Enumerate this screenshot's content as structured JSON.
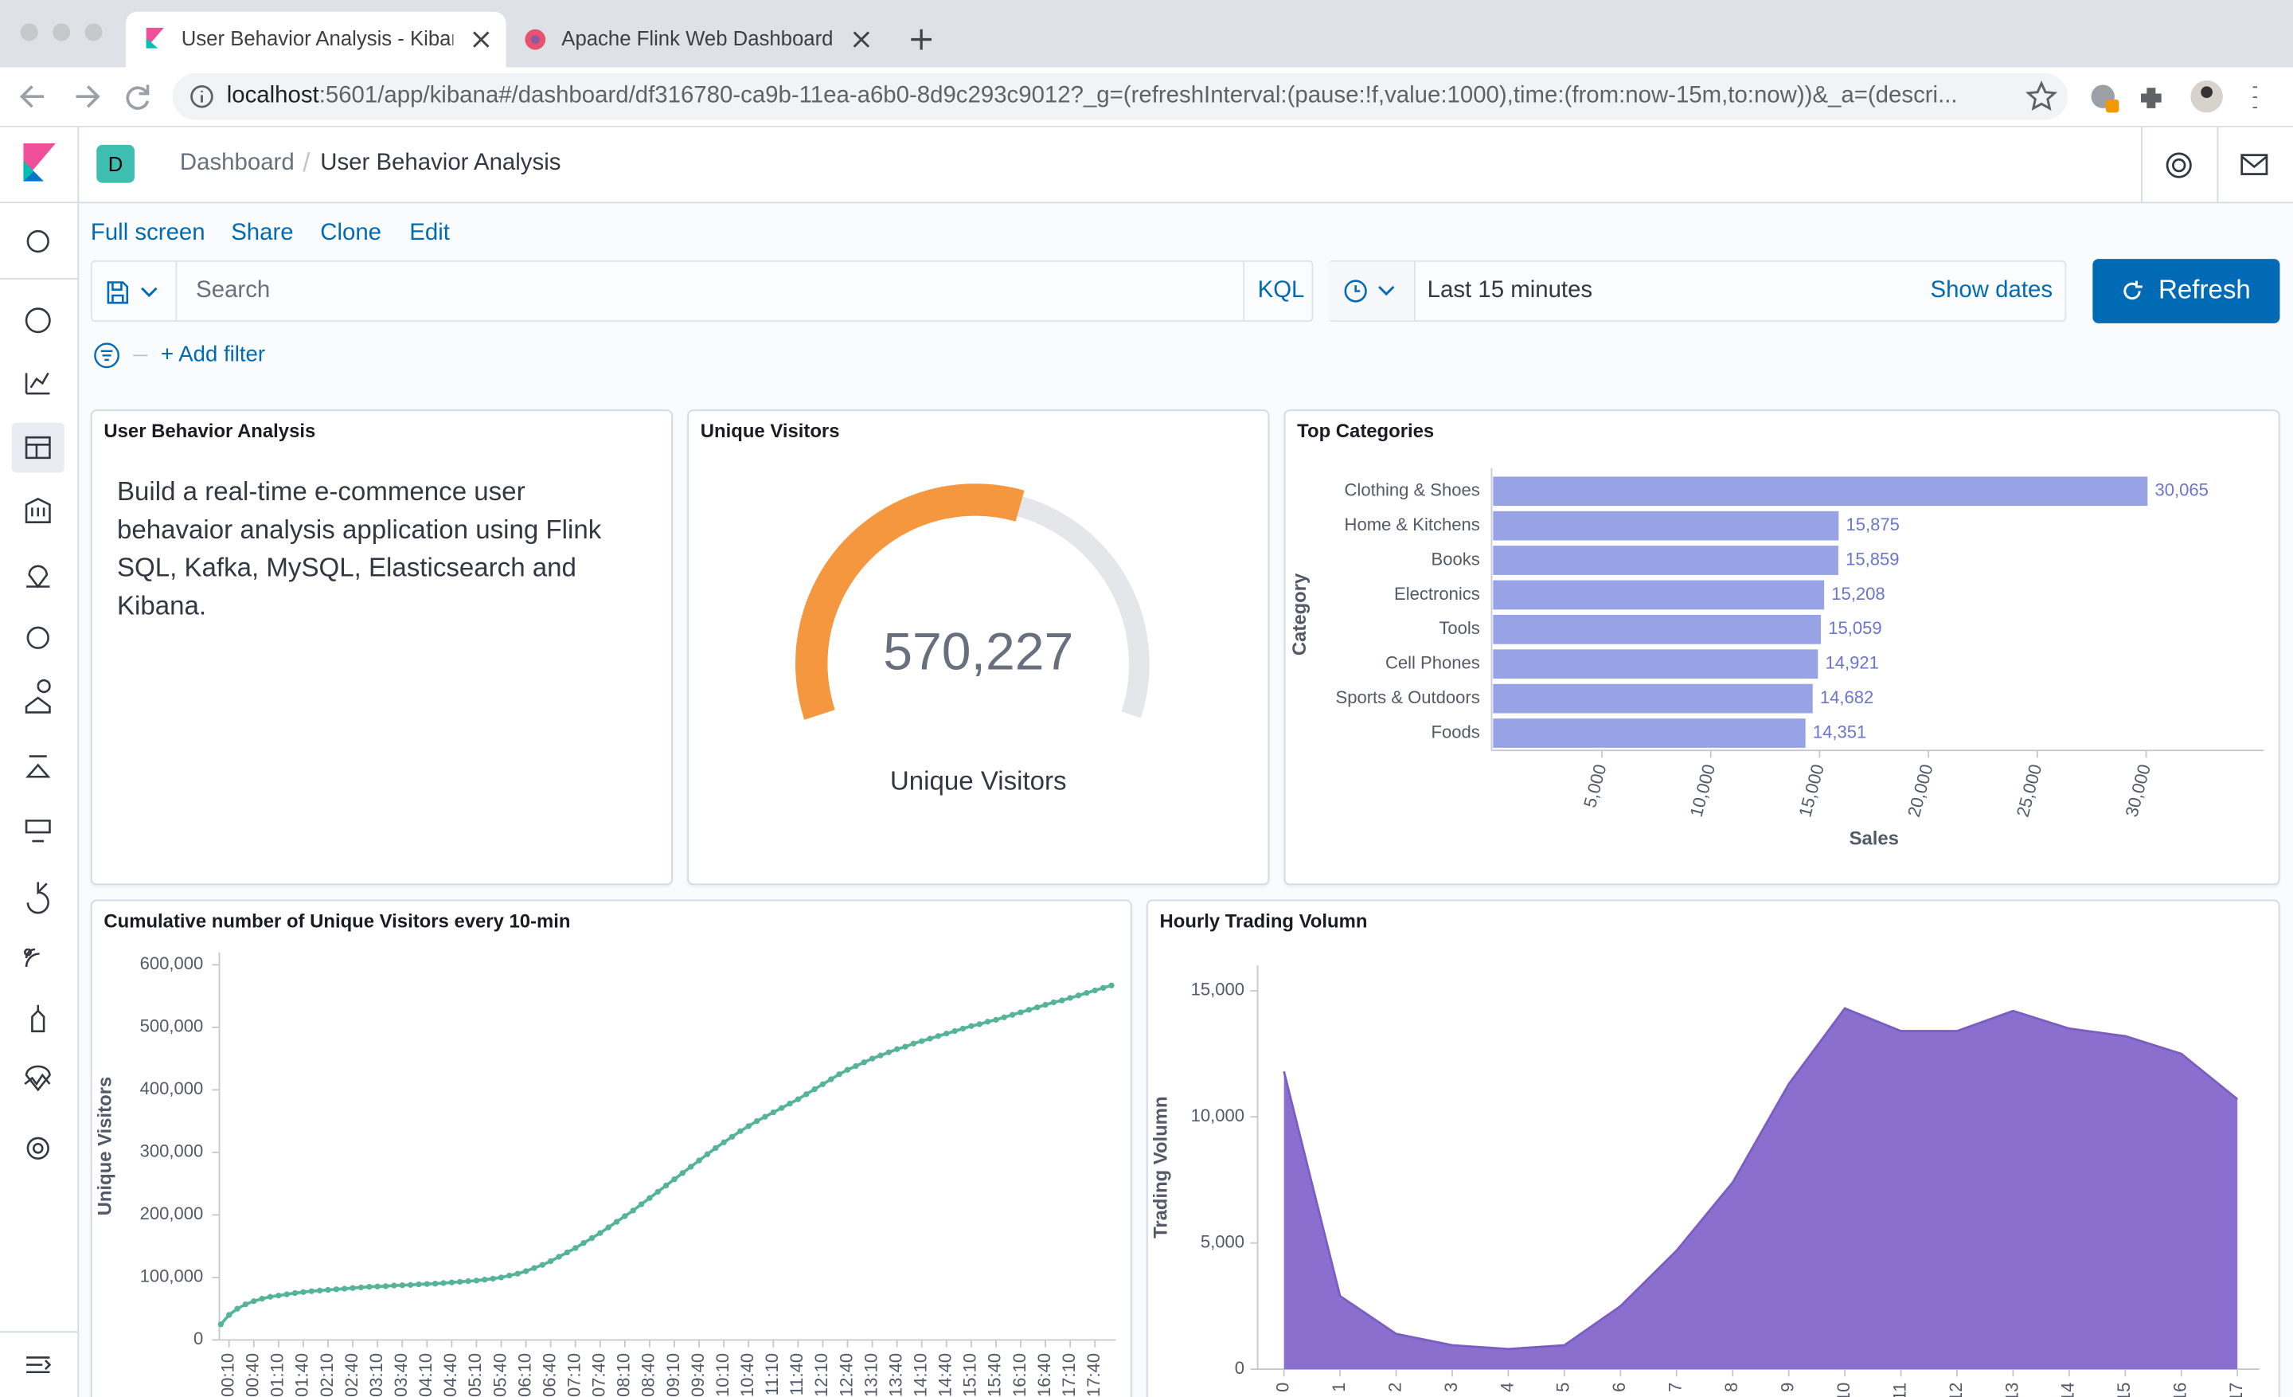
{
  "browser": {
    "tabs": [
      "User Behavior Analysis - Kiban",
      "Apache Flink Web Dashboard"
    ],
    "url_host": "localhost",
    "url_rest": ":5601/app/kibana#/dashboard/df316780-ca9b-11ea-a6b0-8d9c293c9012?_g=(refreshInterval:(pause:!f,value:1000),time:(from:now-15m,to:now))&_a=(descri..."
  },
  "kibana": {
    "space": "D",
    "breadcrumbs": [
      "Dashboard",
      "User Behavior Analysis"
    ],
    "menu": [
      "Full screen",
      "Share",
      "Clone",
      "Edit"
    ],
    "search_placeholder": "Search",
    "query_language": "KQL",
    "time_range": "Last 15 minutes",
    "show_dates": "Show dates",
    "refresh": "Refresh",
    "add_filter": "+ Add filter"
  },
  "panels": [
    {
      "title": "User Behavior Analysis",
      "body": "Build a real-time e-commence user behavaior analysis application using Flink SQL, Kafka, MySQL, Elasticsearch and Kibana."
    },
    {
      "title": "Unique Visitors",
      "value": 570227,
      "value_label": "570,227",
      "label": "Unique Visitors"
    },
    {
      "title": "Top Categories",
      "chart": {
        "type": "barh",
        "color": "#98a3e6",
        "label_color": "#6b75c9",
        "categories": [
          "Clothing & Shoes",
          "Home & Kitchens",
          "Books",
          "Electronics",
          "Tools",
          "Cell Phones",
          "Sports & Outdoors",
          "Foods"
        ],
        "values": [
          30065,
          15875,
          15859,
          15208,
          15059,
          14921,
          14682,
          14351
        ],
        "value_labels": [
          "30,065",
          "15,875",
          "15,859",
          "15,208",
          "15,059",
          "14,921",
          "14,682",
          "14,351"
        ],
        "xlabel": "Sales",
        "ylabel": "Category",
        "xlim": [
          0,
          35000
        ],
        "xticks": [
          {
            "value": 5000,
            "label": "5,000"
          },
          {
            "value": 10000,
            "label": "10,000"
          },
          {
            "value": 15000,
            "label": "15,000"
          },
          {
            "value": 20000,
            "label": "20,000"
          },
          {
            "value": 25000,
            "label": "25,000"
          },
          {
            "value": 30000,
            "label": "30,000"
          }
        ]
      }
    },
    {
      "title": "Cumulative number of Unique Visitors every 10-min",
      "chart": {
        "type": "line",
        "color": "#54b399",
        "ylabel": "Unique Visitors",
        "x": [
          "00:00",
          "00:10",
          "00:20",
          "00:30",
          "00:40",
          "00:50",
          "01:00",
          "01:10",
          "01:20",
          "01:30",
          "01:40",
          "01:50",
          "02:00",
          "02:10",
          "02:20",
          "02:30",
          "02:40",
          "02:50",
          "03:00",
          "03:10",
          "03:20",
          "03:30",
          "03:40",
          "03:50",
          "04:00",
          "04:10",
          "04:20",
          "04:30",
          "04:40",
          "04:50",
          "05:00",
          "05:10",
          "05:20",
          "05:30",
          "05:40",
          "05:50",
          "06:00",
          "06:10",
          "06:20",
          "06:30",
          "06:40",
          "06:50",
          "07:00",
          "07:10",
          "07:20",
          "07:30",
          "07:40",
          "07:50",
          "08:00",
          "08:10",
          "08:20",
          "08:30",
          "08:40",
          "08:50",
          "09:00",
          "09:10",
          "09:20",
          "09:30",
          "09:40",
          "09:50",
          "10:00",
          "10:10",
          "10:20",
          "10:30",
          "10:40",
          "10:50",
          "11:00",
          "11:10",
          "11:20",
          "11:30",
          "11:40",
          "11:50",
          "12:00",
          "12:10",
          "12:20",
          "12:30",
          "12:40",
          "12:50",
          "13:00",
          "13:10",
          "13:20",
          "13:30",
          "13:40",
          "13:50",
          "14:00",
          "14:10",
          "14:20",
          "14:30",
          "14:40",
          "14:50",
          "15:00",
          "15:10",
          "15:20",
          "15:30",
          "15:40",
          "15:50",
          "16:00",
          "16:10",
          "16:20",
          "16:30",
          "16:40",
          "16:50",
          "17:00",
          "17:10",
          "17:20",
          "17:30",
          "17:40",
          "17:50",
          "18:00"
        ],
        "values": [
          25000,
          40000,
          50000,
          57000,
          62000,
          66000,
          69000,
          71000,
          73000,
          75000,
          76500,
          78000,
          79000,
          80000,
          81000,
          82000,
          83000,
          84000,
          85000,
          85500,
          86000,
          87000,
          87500,
          88000,
          89000,
          89500,
          90000,
          91000,
          92000,
          93000,
          94000,
          95000,
          96500,
          98000,
          100000,
          103000,
          106000,
          110000,
          115000,
          120000,
          126000,
          133000,
          140000,
          147000,
          155000,
          163000,
          171000,
          180000,
          189000,
          198000,
          207000,
          217000,
          227000,
          237000,
          247000,
          257000,
          267000,
          277000,
          287000,
          297000,
          307000,
          316000,
          325000,
          334000,
          342000,
          350000,
          357000,
          364000,
          371000,
          378000,
          385000,
          393000,
          401000,
          409000,
          417000,
          425000,
          432000,
          438000,
          444000,
          450000,
          455000,
          460000,
          465000,
          469000,
          474000,
          478000,
          482000,
          486000,
          490000,
          494000,
          498000,
          502000,
          505000,
          509000,
          512000,
          516000,
          520000,
          524000,
          528000,
          532000,
          536000,
          540000,
          543000,
          547000,
          551000,
          555000,
          559000,
          563000,
          567000
        ],
        "xticks": [
          "00:10",
          "00:40",
          "01:10",
          "01:40",
          "02:10",
          "02:40",
          "03:10",
          "03:40",
          "04:10",
          "04:40",
          "05:10",
          "05:40",
          "06:10",
          "06:40",
          "07:10",
          "07:40",
          "08:10",
          "08:40",
          "09:10",
          "09:40",
          "10:10",
          "10:40",
          "11:10",
          "11:40",
          "12:10",
          "12:40",
          "13:10",
          "13:40",
          "14:10",
          "14:40",
          "15:10",
          "15:40",
          "16:10",
          "16:40",
          "17:10",
          "17:40"
        ],
        "ylim": [
          0,
          620000
        ],
        "yticks": [
          0,
          {
            "value": 100000,
            "label": "100,000"
          },
          {
            "value": 200000,
            "label": "200,000"
          },
          {
            "value": 300000,
            "label": "300,000"
          },
          {
            "value": 400000,
            "label": "400,000"
          },
          {
            "value": 500000,
            "label": "500,000"
          },
          {
            "value": 600000,
            "label": "600,000"
          }
        ]
      }
    },
    {
      "title": "Hourly Trading Volumn",
      "chart": {
        "type": "area",
        "color": "#8b6fcf",
        "ylabel": "Trading Volumn",
        "x": [
          0,
          1,
          2,
          3,
          4,
          5,
          6,
          7,
          8,
          9,
          10,
          11,
          12,
          13,
          14,
          15,
          16,
          17
        ],
        "values": [
          11800,
          2900,
          1400,
          950,
          800,
          950,
          2500,
          4700,
          7400,
          11300,
          14300,
          13400,
          13400,
          14200,
          13500,
          13200,
          12500,
          10700
        ],
        "xlim": [
          0,
          17
        ],
        "xticks": [
          0,
          1,
          2,
          3,
          4,
          5,
          6,
          7,
          8,
          9,
          10,
          11,
          12,
          13,
          14,
          15,
          16,
          17
        ],
        "ylim": [
          0,
          16000
        ],
        "yticks": [
          0,
          {
            "value": 5000,
            "label": "5,000"
          },
          {
            "value": 10000,
            "label": "10,000"
          },
          {
            "value": 15000,
            "label": "15,000"
          }
        ]
      }
    }
  ]
}
